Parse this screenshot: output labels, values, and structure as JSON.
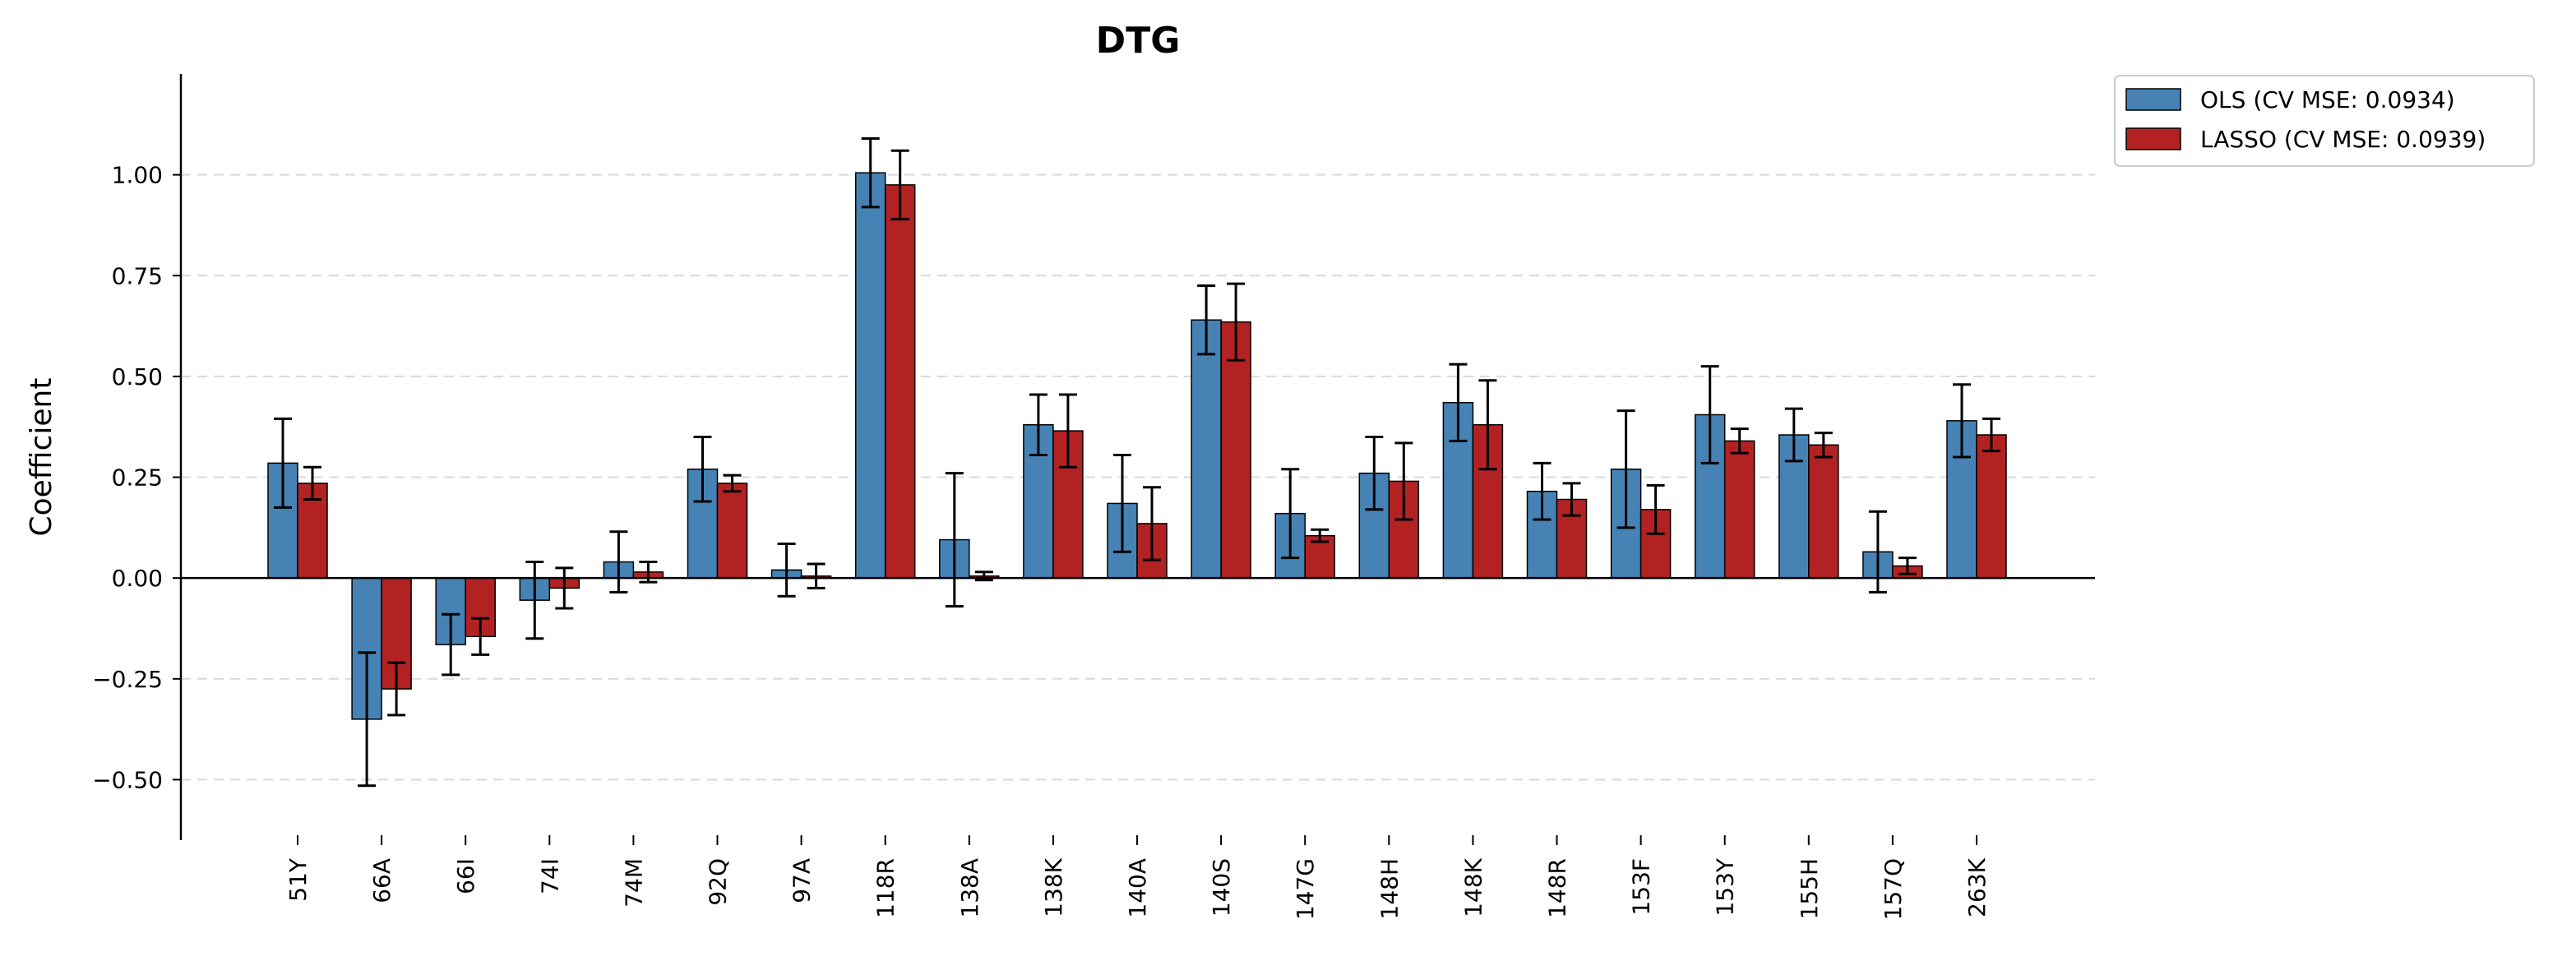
{
  "chart_data": {
    "type": "bar",
    "title": "DTG",
    "xlabel": "",
    "ylabel": "Coefficient",
    "ylim": [
      -0.65,
      1.25
    ],
    "yticks": [
      -0.5,
      -0.25,
      0.0,
      0.25,
      0.5,
      0.75,
      1.0
    ],
    "ytick_labels": [
      "−0.50",
      "−0.25",
      "0.00",
      "0.25",
      "0.50",
      "0.75",
      "1.00"
    ],
    "grid": "horizontal dashed",
    "legend_position": "top-right outside",
    "categories": [
      "51Y",
      "66A",
      "66I",
      "74I",
      "74M",
      "92Q",
      "97A",
      "118R",
      "138A",
      "138K",
      "140A",
      "140S",
      "147G",
      "148H",
      "148K",
      "148R",
      "153F",
      "153Y",
      "155H",
      "157Q",
      "263K"
    ],
    "series": [
      {
        "name": "OLS (CV MSE: 0.0934)",
        "color": "#4682b4",
        "values": [
          0.285,
          -0.35,
          -0.165,
          -0.055,
          0.04,
          0.27,
          0.02,
          1.005,
          0.095,
          0.38,
          0.185,
          0.64,
          0.16,
          0.26,
          0.435,
          0.215,
          0.27,
          0.405,
          0.355,
          0.065,
          0.39
        ],
        "errors": [
          0.11,
          0.165,
          0.075,
          0.095,
          0.075,
          0.08,
          0.065,
          0.085,
          0.165,
          0.075,
          0.12,
          0.085,
          0.11,
          0.09,
          0.095,
          0.07,
          0.145,
          0.12,
          0.065,
          0.1,
          0.09
        ]
      },
      {
        "name": "LASSO (CV MSE: 0.0939)",
        "color": "#b22222",
        "values": [
          0.235,
          -0.275,
          -0.145,
          -0.025,
          0.015,
          0.235,
          0.005,
          0.975,
          0.005,
          0.365,
          0.135,
          0.635,
          0.105,
          0.24,
          0.38,
          0.195,
          0.17,
          0.34,
          0.33,
          0.03,
          0.355
        ],
        "errors": [
          0.04,
          0.065,
          0.045,
          0.05,
          0.025,
          0.02,
          0.03,
          0.085,
          0.01,
          0.09,
          0.09,
          0.095,
          0.015,
          0.095,
          0.11,
          0.04,
          0.06,
          0.03,
          0.03,
          0.02,
          0.04
        ]
      }
    ]
  }
}
